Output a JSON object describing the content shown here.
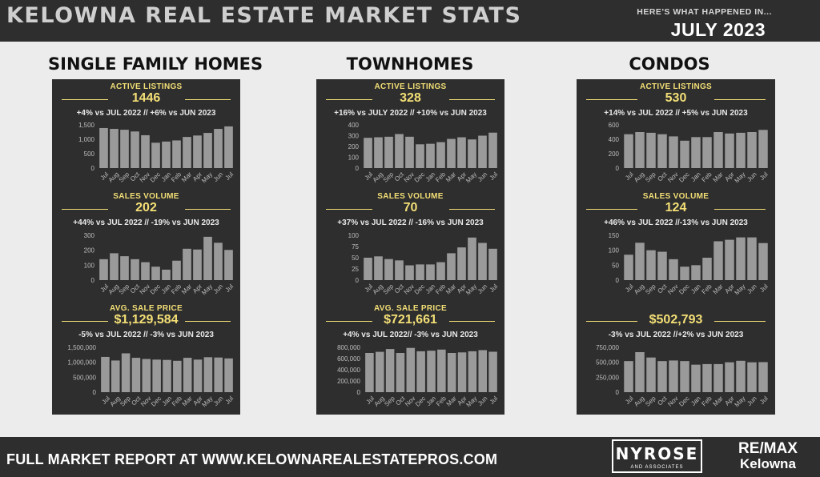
{
  "header": {
    "title": "KELOWNA REAL ESTATE MARKET STATS",
    "subtitle": "HERE'S WHAT HAPPENED IN...",
    "period": "JULY 2023"
  },
  "footer": {
    "report_text": "FULL MARKET REPORT AT WWW.KELOWNAREALESTATEPROS.COM",
    "brand_main": "NYROSE",
    "brand_sub": "AND ASSOCIATES",
    "remax_top": "RE/MAX",
    "remax_bottom": "Kelowna"
  },
  "colors": {
    "accent": "#f3df76",
    "panel": "#2e2e2e",
    "bar": "#9a9a9a"
  },
  "columns": [
    {
      "title": "SINGLE FAMILY HOMES",
      "sections": [
        {
          "label": "ACTIVE LISTINGS",
          "value": "1446",
          "change": "+4% vs JUL 2022 // +6% vs JUN 2023"
        },
        {
          "label": "SALES VOLUME",
          "value": "202",
          "change": "+44% vs  JUL 2022 // -19% vs JUN 2023"
        },
        {
          "label": "AVG. SALE PRICE",
          "value": "$1,129,584",
          "change": "-5% vs  JUL 2022 // -3% vs JUN 2023"
        }
      ]
    },
    {
      "title": "TOWNHOMES",
      "sections": [
        {
          "label": "ACTIVE LISTINGS",
          "value": "328",
          "change": "+16% vs JULY 2022 // +10% vs JUN 2023"
        },
        {
          "label": "SALES VOLUME",
          "value": "70",
          "change": "+37% vs JUL 2022 // -16% vs JUN 2023"
        },
        {
          "label": "AVG. SALE PRICE",
          "value": "$721,661",
          "change": "+4% vs JUL 2022// -3% vs JUN 2023"
        }
      ]
    },
    {
      "title": "CONDOS",
      "sections": [
        {
          "label": "ACTIVE LISTINGS",
          "value": "530",
          "change": "+14% vs JUL  2022 // +5% vs JUN 2023"
        },
        {
          "label": "SALES VOLUME",
          "value": "124",
          "change": "+46% vs JUL 2022 //-13% vs JUN 2023"
        },
        {
          "label": "",
          "value": "$502,793",
          "change": "-3% vs JUL 2022 //+2% vs JUN 2023"
        }
      ]
    }
  ],
  "chart_data": [
    {
      "type": "bar",
      "group": "SINGLE FAMILY HOMES",
      "metric": "ACTIVE LISTINGS",
      "categories": [
        "Jul",
        "Aug",
        "Sep",
        "Oct",
        "Nov",
        "Dec",
        "Jan",
        "Feb",
        "Mar",
        "Apr",
        "May",
        "Jun",
        "Jul"
      ],
      "values": [
        1390,
        1360,
        1330,
        1270,
        1140,
        880,
        920,
        960,
        1080,
        1130,
        1220,
        1360,
        1446
      ],
      "ylim": [
        0,
        1500
      ],
      "yticks": [
        "1,500",
        "1,000",
        "500",
        "0"
      ],
      "ytick_values": [
        1500,
        1000,
        500,
        0
      ]
    },
    {
      "type": "bar",
      "group": "SINGLE FAMILY HOMES",
      "metric": "SALES VOLUME",
      "categories": [
        "Jul",
        "Aug",
        "Sep",
        "Oct",
        "Nov",
        "Dec",
        "Jan",
        "Feb",
        "Mar",
        "Apr",
        "May",
        "Jun",
        "Jul"
      ],
      "values": [
        140,
        180,
        160,
        140,
        120,
        90,
        70,
        130,
        210,
        205,
        290,
        250,
        202
      ],
      "ylim": [
        0,
        300
      ],
      "yticks": [
        "300",
        "200",
        "100",
        "0"
      ],
      "ytick_values": [
        300,
        200,
        100,
        0
      ]
    },
    {
      "type": "bar",
      "group": "SINGLE FAMILY HOMES",
      "metric": "AVG. SALE PRICE",
      "categories": [
        "Jul",
        "Aug",
        "Sep",
        "Oct",
        "Nov",
        "Dec",
        "Jan",
        "Feb",
        "Mar",
        "Apr",
        "May",
        "Jun",
        "Jul"
      ],
      "values": [
        1180000,
        1060000,
        1300000,
        1150000,
        1110000,
        1090000,
        1080000,
        1050000,
        1150000,
        1090000,
        1170000,
        1160000,
        1129584
      ],
      "ylim": [
        0,
        1500000
      ],
      "yticks": [
        "1,500,000",
        "1,000,000",
        "500,000",
        "0"
      ],
      "ytick_values": [
        1500000,
        1000000,
        500000,
        0
      ]
    },
    {
      "type": "bar",
      "group": "TOWNHOMES",
      "metric": "ACTIVE LISTINGS",
      "categories": [
        "Jul",
        "Aug",
        "Sep",
        "Oct",
        "Nov",
        "Dec",
        "Jan",
        "Feb",
        "Mar",
        "Apr",
        "May",
        "Jun",
        "Jul"
      ],
      "values": [
        280,
        285,
        290,
        315,
        290,
        220,
        225,
        240,
        270,
        285,
        265,
        300,
        328
      ],
      "ylim": [
        0,
        400
      ],
      "yticks": [
        "400",
        "300",
        "200",
        "100",
        "0"
      ],
      "ytick_values": [
        400,
        300,
        200,
        100,
        0
      ]
    },
    {
      "type": "bar",
      "group": "TOWNHOMES",
      "metric": "SALES VOLUME",
      "categories": [
        "Jul",
        "Aug",
        "Sep",
        "Oct",
        "Nov",
        "Dec",
        "Jan",
        "Feb",
        "Mar",
        "Apr",
        "May",
        "Jun",
        "Jul"
      ],
      "values": [
        50,
        53,
        47,
        44,
        33,
        35,
        35,
        40,
        60,
        73,
        95,
        83,
        70
      ],
      "ylim": [
        0,
        100
      ],
      "yticks": [
        "100",
        "75",
        "50",
        "25",
        "0"
      ],
      "ytick_values": [
        100,
        75,
        50,
        25,
        0
      ]
    },
    {
      "type": "bar",
      "group": "TOWNHOMES",
      "metric": "AVG. SALE PRICE",
      "categories": [
        "Jul",
        "Aug",
        "Sep",
        "Oct",
        "Nov",
        "Dec",
        "Jan",
        "Feb",
        "Mar",
        "Apr",
        "May",
        "Jun",
        "Jul"
      ],
      "values": [
        700000,
        720000,
        770000,
        700000,
        790000,
        730000,
        740000,
        760000,
        700000,
        710000,
        730000,
        750000,
        721661
      ],
      "ylim": [
        0,
        800000
      ],
      "yticks": [
        "800,000",
        "600,000",
        "400,000",
        "200,000",
        "0"
      ],
      "ytick_values": [
        800000,
        600000,
        400000,
        200000,
        0
      ]
    },
    {
      "type": "bar",
      "group": "CONDOS",
      "metric": "ACTIVE LISTINGS",
      "categories": [
        "Jul",
        "Aug",
        "Sep",
        "Oct",
        "Nov",
        "Dec",
        "Jan",
        "Feb",
        "Mar",
        "Apr",
        "May",
        "Jun",
        "Jul"
      ],
      "values": [
        470,
        500,
        490,
        470,
        440,
        380,
        430,
        430,
        500,
        480,
        490,
        500,
        530
      ],
      "ylim": [
        0,
        600
      ],
      "yticks": [
        "600",
        "400",
        "200",
        "0"
      ],
      "ytick_values": [
        600,
        400,
        200,
        0
      ]
    },
    {
      "type": "bar",
      "group": "CONDOS",
      "metric": "SALES VOLUME",
      "categories": [
        "Jul",
        "Aug",
        "Sep",
        "Oct",
        "Nov",
        "Dec",
        "Jan",
        "Feb",
        "Mar",
        "Apr",
        "May",
        "Jun",
        "Jul"
      ],
      "values": [
        85,
        125,
        100,
        95,
        70,
        45,
        50,
        75,
        130,
        135,
        143,
        143,
        124
      ],
      "ylim": [
        0,
        150
      ],
      "yticks": [
        "150",
        "100",
        "50",
        "0"
      ],
      "ytick_values": [
        150,
        100,
        50,
        0
      ]
    },
    {
      "type": "bar",
      "group": "CONDOS",
      "metric": "",
      "categories": [
        "Jul",
        "Aug",
        "Sep",
        "Oct",
        "Nov",
        "Dec",
        "Jan",
        "Feb",
        "Mar",
        "Apr",
        "May",
        "Jun",
        "Jul"
      ],
      "values": [
        520,
        670,
        580,
        520,
        530,
        520,
        460,
        470,
        470,
        500,
        525,
        500,
        502.793
      ],
      "ylim": [
        0,
        750
      ],
      "yticks": [
        "750,000",
        "500,000",
        "250,000",
        "0"
      ],
      "ytick_values": [
        750,
        500,
        250,
        0
      ]
    }
  ]
}
